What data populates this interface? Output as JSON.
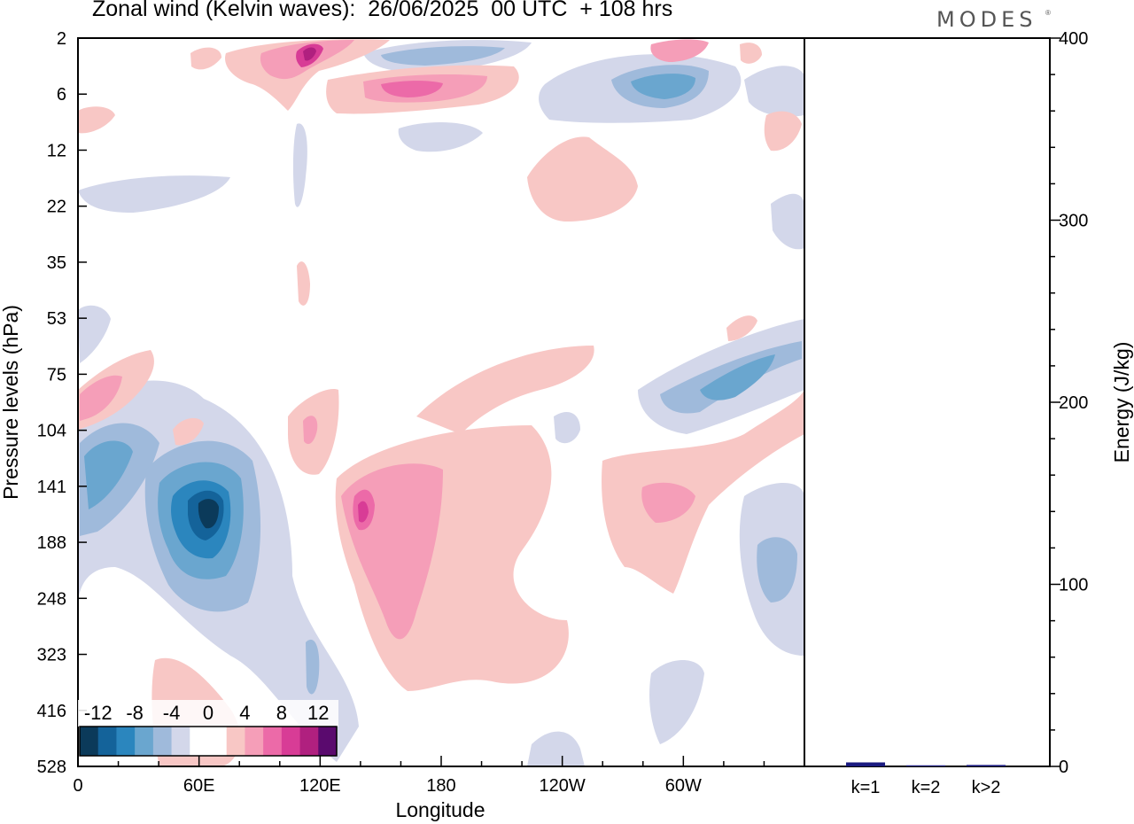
{
  "header": {
    "title": "Zonal wind (Kelvin waves):  26/06/2025  00 UTC  + 108 hrs",
    "brand": "MODES",
    "brand_mark": "®"
  },
  "chart_data": [
    {
      "type": "heatmap",
      "title": "Zonal wind (Kelvin waves):  26/06/2025  00 UTC  + 108 hrs",
      "xlabel": "Longitude",
      "ylabel": "Pressure levels (hPa)",
      "x_ticks": [
        "0",
        "60E",
        "120E",
        "180",
        "120W",
        "60W"
      ],
      "x_tick_degrees": [
        0,
        60,
        120,
        180,
        240,
        300
      ],
      "xlim": [
        0,
        360
      ],
      "y_ticks": [
        "2",
        "6",
        "12",
        "22",
        "35",
        "53",
        "75",
        "104",
        "141",
        "188",
        "248",
        "323",
        "416",
        "528"
      ],
      "y_scale": "model levels (top 2 hPa, bottom 528 hPa)",
      "colorbar": {
        "labels": [
          "-12",
          "-8",
          "-4",
          "0",
          "4",
          "8",
          "12"
        ],
        "label_values": [
          -12,
          -8,
          -4,
          0,
          4,
          8,
          12
        ],
        "bins": [
          -14,
          -12,
          -10,
          -8,
          -6,
          -4,
          -2,
          0,
          2,
          4,
          6,
          8,
          10,
          12,
          14
        ],
        "colors": [
          "#0b3a5a",
          "#14639a",
          "#2b86be",
          "#6aa6cf",
          "#9fbadb",
          "#d3d7ea",
          "#ffffff",
          "#ffffff",
          "#f8c7c5",
          "#f59eb8",
          "#ec6aa8",
          "#d83c96",
          "#b0207f",
          "#5a0a6e"
        ],
        "placement": "bottom-left"
      },
      "features": [
        {
          "lon": 10,
          "level": "141",
          "value": -9
        },
        {
          "lon": 60,
          "level": "141",
          "value": -12
        },
        {
          "lon": 140,
          "level": "141",
          "value": 8
        },
        {
          "lon": 160,
          "level": "188",
          "value": 5
        },
        {
          "lon": 175,
          "level": "6",
          "value": 6
        },
        {
          "lon": 115,
          "level": "2",
          "value": 8
        },
        {
          "lon": 155,
          "level": "2",
          "value": -5
        },
        {
          "lon": 300,
          "level": "6",
          "value": -7
        },
        {
          "lon": 325,
          "level": "104",
          "value": -6
        },
        {
          "lon": 295,
          "level": "141",
          "value": 5
        },
        {
          "lon": 10,
          "level": "104",
          "value": 6
        },
        {
          "lon": 200,
          "level": "22",
          "value": 3
        },
        {
          "lon": 340,
          "level": "188",
          "value": -4
        }
      ]
    },
    {
      "type": "bar",
      "categories": [
        "k=1",
        "k=2",
        "k>2"
      ],
      "values": [
        2.2,
        0.6,
        0.8
      ],
      "ylabel": "Energy (J/kg)",
      "ylim": [
        0,
        400
      ],
      "y_ticks": [
        "0",
        "100",
        "200",
        "300",
        "400"
      ],
      "y_tick_values": [
        0,
        100,
        200,
        300,
        400
      ],
      "bar_color": "#1a1a80"
    }
  ]
}
